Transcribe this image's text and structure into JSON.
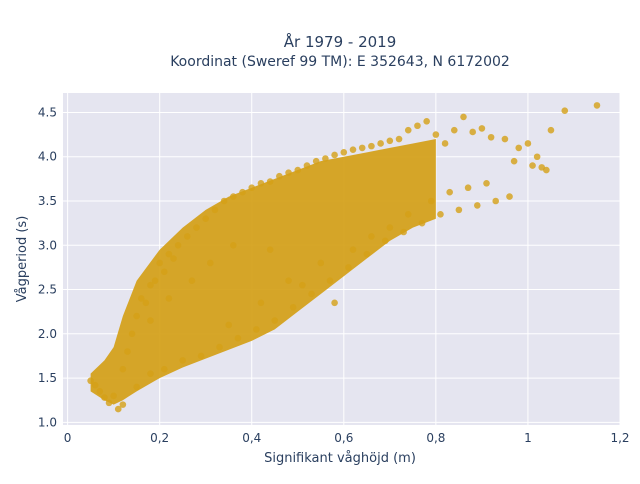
{
  "chart_data": {
    "type": "scatter",
    "title": "År 1979 - 2019",
    "subtitle": "Koordinat (Sweref 99 TM): E 352643, N 6172002",
    "xlabel": "Signifikant våghöjd (m)",
    "ylabel": "Vågperiod (s)",
    "xlim": [
      -0.01,
      1.2
    ],
    "ylim": [
      0.97,
      4.72
    ],
    "xticks": [
      0,
      0.2,
      0.4,
      0.6,
      0.8,
      1,
      1.2
    ],
    "xtick_labels": [
      "0",
      "0,2",
      "0,4",
      "0,6",
      "0,8",
      "1",
      "1,2"
    ],
    "yticks": [
      1.0,
      1.5,
      2.0,
      2.5,
      3.0,
      3.5,
      4.0,
      4.5
    ],
    "ytick_labels": [
      "1.0",
      "1.5",
      "2.0",
      "2.5",
      "3.0",
      "3.5",
      "4.0",
      "4.5"
    ],
    "grid": true,
    "marker_color": "#D4A017",
    "plot_bgcolor": "#E5E5F0",
    "dense_band": {
      "x": [
        0.05,
        0.08,
        0.1,
        0.12,
        0.15,
        0.2,
        0.25,
        0.3,
        0.35,
        0.4,
        0.45,
        0.5,
        0.55,
        0.6,
        0.65,
        0.7,
        0.75,
        0.8
      ],
      "y_low": [
        1.35,
        1.25,
        1.2,
        1.25,
        1.35,
        1.5,
        1.62,
        1.72,
        1.82,
        1.92,
        2.05,
        2.25,
        2.45,
        2.65,
        2.85,
        3.05,
        3.2,
        3.3
      ],
      "y_high": [
        1.55,
        1.7,
        1.85,
        2.2,
        2.6,
        2.95,
        3.2,
        3.4,
        3.55,
        3.65,
        3.75,
        3.85,
        3.95,
        4.0,
        4.05,
        4.1,
        4.15,
        4.2
      ]
    },
    "series": [
      {
        "x": [
          0.05,
          0.07,
          0.09,
          0.1,
          0.11,
          0.12,
          0.13,
          0.14,
          0.15,
          0.16,
          0.17,
          0.18,
          0.19,
          0.2,
          0.21,
          0.22,
          0.23,
          0.24,
          0.26,
          0.28,
          0.3,
          0.32,
          0.34,
          0.36,
          0.38,
          0.4,
          0.42,
          0.44,
          0.46,
          0.48,
          0.5,
          0.52,
          0.54,
          0.56,
          0.58,
          0.6,
          0.62,
          0.64,
          0.66,
          0.68,
          0.7,
          0.72,
          0.74,
          0.76,
          0.78,
          0.8,
          0.82,
          0.84,
          0.86,
          0.88,
          0.9,
          0.92,
          0.95,
          0.98,
          1.0,
          1.02,
          1.05,
          1.08,
          1.15,
          0.06,
          0.08,
          0.12,
          0.15,
          0.18,
          0.21,
          0.25,
          0.29,
          0.33,
          0.37,
          0.41,
          0.45,
          0.49,
          0.53,
          0.57,
          0.61,
          0.65,
          0.69,
          0.73,
          0.77,
          0.81,
          0.85,
          0.89,
          0.93,
          0.96,
          1.01,
          1.04,
          0.35,
          0.42,
          0.48,
          0.55,
          0.58,
          0.62,
          0.66,
          0.7,
          0.74,
          0.79,
          0.83,
          0.87,
          0.91,
          0.97,
          1.03,
          0.18,
          0.22,
          0.27,
          0.31,
          0.36,
          0.44,
          0.51
        ],
        "y": [
          1.47,
          1.35,
          1.22,
          1.3,
          1.15,
          1.6,
          1.8,
          2.0,
          2.2,
          2.4,
          2.35,
          2.55,
          2.6,
          2.8,
          2.7,
          2.9,
          2.85,
          3.0,
          3.1,
          3.2,
          3.3,
          3.4,
          3.5,
          3.55,
          3.6,
          3.65,
          3.7,
          3.72,
          3.78,
          3.82,
          3.85,
          3.9,
          3.95,
          3.98,
          4.02,
          4.05,
          4.08,
          4.1,
          4.12,
          4.15,
          4.18,
          4.2,
          4.3,
          4.35,
          4.4,
          4.25,
          4.15,
          4.3,
          4.45,
          4.28,
          4.32,
          4.22,
          4.2,
          4.1,
          4.15,
          4.0,
          4.3,
          4.52,
          4.58,
          1.42,
          1.28,
          1.2,
          1.4,
          1.55,
          1.6,
          1.7,
          1.75,
          1.85,
          1.95,
          2.05,
          2.15,
          2.3,
          2.45,
          2.6,
          2.75,
          2.9,
          3.05,
          3.15,
          3.25,
          3.35,
          3.4,
          3.45,
          3.5,
          3.55,
          3.9,
          3.85,
          2.1,
          2.35,
          2.6,
          2.8,
          2.35,
          2.95,
          3.1,
          3.2,
          3.35,
          3.5,
          3.6,
          3.65,
          3.7,
          3.95,
          3.88,
          2.15,
          2.4,
          2.6,
          2.8,
          3.0,
          2.95,
          2.55
        ]
      }
    ]
  }
}
